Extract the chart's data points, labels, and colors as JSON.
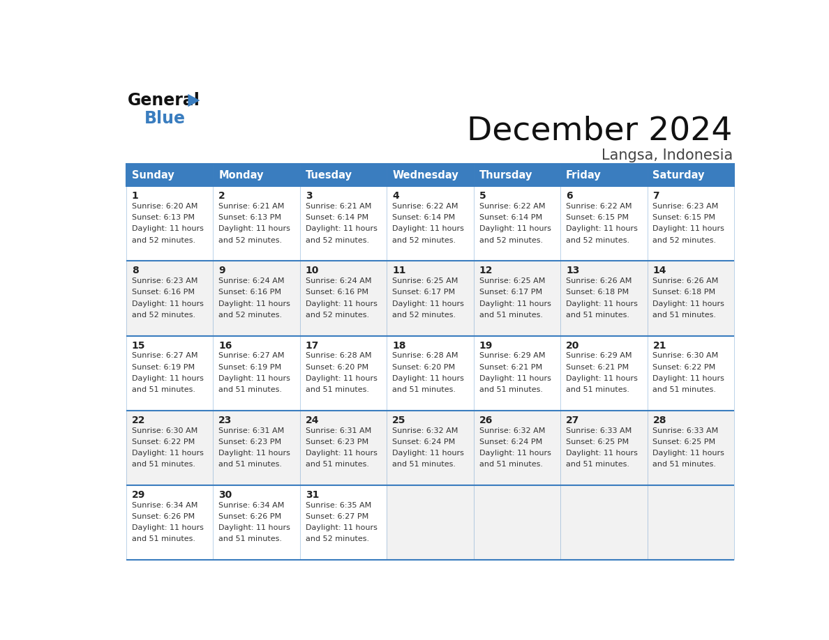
{
  "title": "December 2024",
  "subtitle": "Langsa, Indonesia",
  "header_color": "#3a7dbf",
  "header_text_color": "#ffffff",
  "border_color": "#3a7dbf",
  "text_color": "#333333",
  "day_num_color": "#222222",
  "bg_white": "#ffffff",
  "bg_light": "#f2f2f2",
  "days_of_week": [
    "Sunday",
    "Monday",
    "Tuesday",
    "Wednesday",
    "Thursday",
    "Friday",
    "Saturday"
  ],
  "calendar": [
    [
      {
        "day": 1,
        "sunrise": "6:20 AM",
        "sunset": "6:13 PM",
        "daylight_hrs": "11 hours",
        "daylight_min": "and 52 minutes."
      },
      {
        "day": 2,
        "sunrise": "6:21 AM",
        "sunset": "6:13 PM",
        "daylight_hrs": "11 hours",
        "daylight_min": "and 52 minutes."
      },
      {
        "day": 3,
        "sunrise": "6:21 AM",
        "sunset": "6:14 PM",
        "daylight_hrs": "11 hours",
        "daylight_min": "and 52 minutes."
      },
      {
        "day": 4,
        "sunrise": "6:22 AM",
        "sunset": "6:14 PM",
        "daylight_hrs": "11 hours",
        "daylight_min": "and 52 minutes."
      },
      {
        "day": 5,
        "sunrise": "6:22 AM",
        "sunset": "6:14 PM",
        "daylight_hrs": "11 hours",
        "daylight_min": "and 52 minutes."
      },
      {
        "day": 6,
        "sunrise": "6:22 AM",
        "sunset": "6:15 PM",
        "daylight_hrs": "11 hours",
        "daylight_min": "and 52 minutes."
      },
      {
        "day": 7,
        "sunrise": "6:23 AM",
        "sunset": "6:15 PM",
        "daylight_hrs": "11 hours",
        "daylight_min": "and 52 minutes."
      }
    ],
    [
      {
        "day": 8,
        "sunrise": "6:23 AM",
        "sunset": "6:16 PM",
        "daylight_hrs": "11 hours",
        "daylight_min": "and 52 minutes."
      },
      {
        "day": 9,
        "sunrise": "6:24 AM",
        "sunset": "6:16 PM",
        "daylight_hrs": "11 hours",
        "daylight_min": "and 52 minutes."
      },
      {
        "day": 10,
        "sunrise": "6:24 AM",
        "sunset": "6:16 PM",
        "daylight_hrs": "11 hours",
        "daylight_min": "and 52 minutes."
      },
      {
        "day": 11,
        "sunrise": "6:25 AM",
        "sunset": "6:17 PM",
        "daylight_hrs": "11 hours",
        "daylight_min": "and 52 minutes."
      },
      {
        "day": 12,
        "sunrise": "6:25 AM",
        "sunset": "6:17 PM",
        "daylight_hrs": "11 hours",
        "daylight_min": "and 51 minutes."
      },
      {
        "day": 13,
        "sunrise": "6:26 AM",
        "sunset": "6:18 PM",
        "daylight_hrs": "11 hours",
        "daylight_min": "and 51 minutes."
      },
      {
        "day": 14,
        "sunrise": "6:26 AM",
        "sunset": "6:18 PM",
        "daylight_hrs": "11 hours",
        "daylight_min": "and 51 minutes."
      }
    ],
    [
      {
        "day": 15,
        "sunrise": "6:27 AM",
        "sunset": "6:19 PM",
        "daylight_hrs": "11 hours",
        "daylight_min": "and 51 minutes."
      },
      {
        "day": 16,
        "sunrise": "6:27 AM",
        "sunset": "6:19 PM",
        "daylight_hrs": "11 hours",
        "daylight_min": "and 51 minutes."
      },
      {
        "day": 17,
        "sunrise": "6:28 AM",
        "sunset": "6:20 PM",
        "daylight_hrs": "11 hours",
        "daylight_min": "and 51 minutes."
      },
      {
        "day": 18,
        "sunrise": "6:28 AM",
        "sunset": "6:20 PM",
        "daylight_hrs": "11 hours",
        "daylight_min": "and 51 minutes."
      },
      {
        "day": 19,
        "sunrise": "6:29 AM",
        "sunset": "6:21 PM",
        "daylight_hrs": "11 hours",
        "daylight_min": "and 51 minutes."
      },
      {
        "day": 20,
        "sunrise": "6:29 AM",
        "sunset": "6:21 PM",
        "daylight_hrs": "11 hours",
        "daylight_min": "and 51 minutes."
      },
      {
        "day": 21,
        "sunrise": "6:30 AM",
        "sunset": "6:22 PM",
        "daylight_hrs": "11 hours",
        "daylight_min": "and 51 minutes."
      }
    ],
    [
      {
        "day": 22,
        "sunrise": "6:30 AM",
        "sunset": "6:22 PM",
        "daylight_hrs": "11 hours",
        "daylight_min": "and 51 minutes."
      },
      {
        "day": 23,
        "sunrise": "6:31 AM",
        "sunset": "6:23 PM",
        "daylight_hrs": "11 hours",
        "daylight_min": "and 51 minutes."
      },
      {
        "day": 24,
        "sunrise": "6:31 AM",
        "sunset": "6:23 PM",
        "daylight_hrs": "11 hours",
        "daylight_min": "and 51 minutes."
      },
      {
        "day": 25,
        "sunrise": "6:32 AM",
        "sunset": "6:24 PM",
        "daylight_hrs": "11 hours",
        "daylight_min": "and 51 minutes."
      },
      {
        "day": 26,
        "sunrise": "6:32 AM",
        "sunset": "6:24 PM",
        "daylight_hrs": "11 hours",
        "daylight_min": "and 51 minutes."
      },
      {
        "day": 27,
        "sunrise": "6:33 AM",
        "sunset": "6:25 PM",
        "daylight_hrs": "11 hours",
        "daylight_min": "and 51 minutes."
      },
      {
        "day": 28,
        "sunrise": "6:33 AM",
        "sunset": "6:25 PM",
        "daylight_hrs": "11 hours",
        "daylight_min": "and 51 minutes."
      }
    ],
    [
      {
        "day": 29,
        "sunrise": "6:34 AM",
        "sunset": "6:26 PM",
        "daylight_hrs": "11 hours",
        "daylight_min": "and 51 minutes."
      },
      {
        "day": 30,
        "sunrise": "6:34 AM",
        "sunset": "6:26 PM",
        "daylight_hrs": "11 hours",
        "daylight_min": "and 51 minutes."
      },
      {
        "day": 31,
        "sunrise": "6:35 AM",
        "sunset": "6:27 PM",
        "daylight_hrs": "11 hours",
        "daylight_min": "and 52 minutes."
      },
      null,
      null,
      null,
      null
    ]
  ]
}
